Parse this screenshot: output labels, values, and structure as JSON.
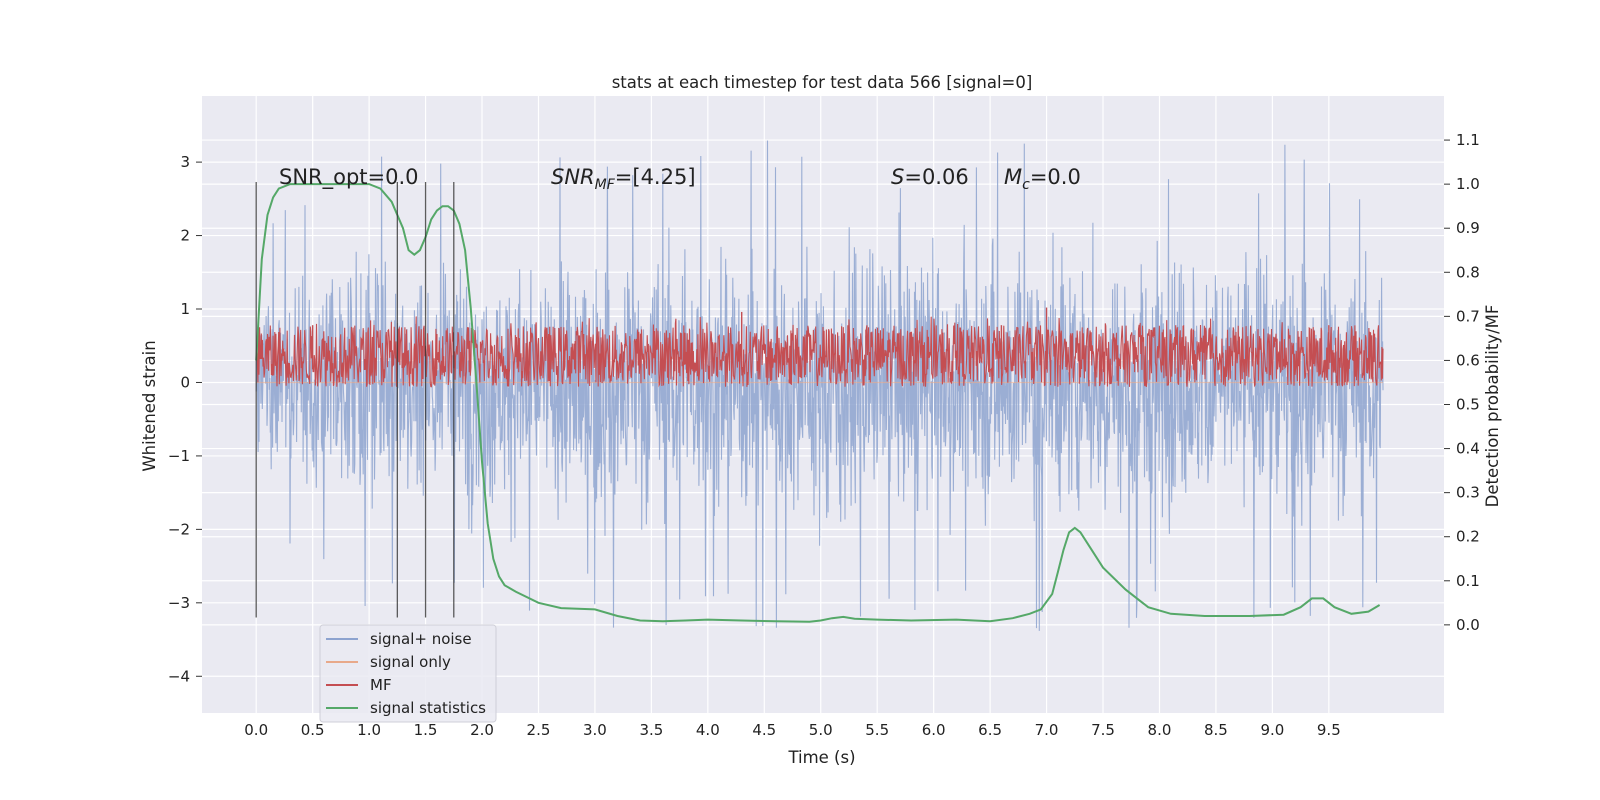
{
  "chart_data": {
    "type": "line",
    "title": "stats at each timestep for test data 566 [signal=0]",
    "xlabel": "Time (s)",
    "ylabel": "Whitened strain",
    "y2label": "Detection probability/MF",
    "xlim": [
      -0.48,
      10.52
    ],
    "ylim": [
      -4.5,
      3.9
    ],
    "y2lim": [
      -0.2,
      1.2
    ],
    "xticks": [
      "0.0",
      "0.5",
      "1.0",
      "1.5",
      "2.0",
      "2.5",
      "3.0",
      "3.5",
      "4.0",
      "4.5",
      "5.0",
      "5.5",
      "6.0",
      "6.5",
      "7.0",
      "7.5",
      "8.0",
      "8.5",
      "9.0",
      "9.5"
    ],
    "xtick_values": [
      0,
      0.5,
      1,
      1.5,
      2,
      2.5,
      3,
      3.5,
      4,
      4.5,
      5,
      5.5,
      6,
      6.5,
      7,
      7.5,
      8,
      8.5,
      9,
      9.5
    ],
    "yticks": [
      "3",
      "2",
      "1",
      "0",
      "−1",
      "−2",
      "−3",
      "−4"
    ],
    "ytick_values": [
      3,
      2,
      1,
      0,
      -1,
      -2,
      -3,
      -4
    ],
    "y2ticks": [
      "1.1",
      "1.0",
      "0.9",
      "0.8",
      "0.7",
      "0.6",
      "0.5",
      "0.4",
      "0.3",
      "0.2",
      "0.1",
      "0.0"
    ],
    "y2tick_values": [
      1.1,
      1.0,
      0.9,
      0.8,
      0.7,
      0.6,
      0.5,
      0.4,
      0.3,
      0.2,
      0.1,
      0.0
    ],
    "grid": true,
    "legend_position": "lower-left",
    "vlines": [
      0.0,
      1.25,
      1.5,
      1.75
    ],
    "vline_range": [
      -3.2,
      2.73
    ],
    "annotations": {
      "snr_opt": "SNR_opt=0.0",
      "snr_mf_main": "SNR",
      "snr_mf_sub": "MF",
      "snr_mf_value": "=[4.25]",
      "s_main": "S",
      "s_value": "=0.06",
      "mc_main": "M",
      "mc_sub": "c",
      "mc_value": "=0.0"
    },
    "series": [
      {
        "name": "signal+ noise",
        "axis": "left",
        "color": "#8da3cf",
        "description_range": [
          -4.0,
          3.55
        ],
        "band_envelope": {
          "t": [
            0,
            1,
            2,
            3,
            4,
            5,
            6,
            7,
            8,
            9,
            10
          ],
          "upper": [
            1.7,
            2.8,
            2.6,
            2.6,
            2.9,
            2.7,
            2.8,
            2.9,
            2.7,
            2.9,
            2.3
          ],
          "lower": [
            -1.7,
            -2.6,
            -2.6,
            -2.9,
            -2.8,
            -2.9,
            -2.7,
            -2.9,
            -2.8,
            -2.8,
            -2.6
          ]
        }
      },
      {
        "name": "signal only",
        "axis": "left",
        "color": "#e8a98a",
        "values_constant": 0.0
      },
      {
        "name": "MF",
        "axis": "right",
        "color": "#c44e52",
        "band_envelope": {
          "t": [
            0,
            10
          ],
          "upper": [
            0.68,
            0.68
          ],
          "lower": [
            0.54,
            0.54
          ]
        },
        "peak_points": [
          [
            0.5,
            0.68
          ],
          [
            1.6,
            0.66
          ],
          [
            2.9,
            0.66
          ],
          [
            4.3,
            0.71
          ],
          [
            5.4,
            0.67
          ],
          [
            6.6,
            0.68
          ],
          [
            7.0,
            0.72
          ],
          [
            8.3,
            0.67
          ],
          [
            9.5,
            0.68
          ]
        ]
      },
      {
        "name": "signal statistics",
        "axis": "right",
        "color": "#55a868",
        "x": [
          0.0,
          0.05,
          0.1,
          0.15,
          0.2,
          0.3,
          0.5,
          0.7,
          0.9,
          1.0,
          1.1,
          1.2,
          1.3,
          1.35,
          1.4,
          1.45,
          1.5,
          1.55,
          1.6,
          1.65,
          1.7,
          1.75,
          1.8,
          1.85,
          1.9,
          1.95,
          2.0,
          2.05,
          2.1,
          2.15,
          2.2,
          2.3,
          2.5,
          2.7,
          3.0,
          3.2,
          3.4,
          3.6,
          3.8,
          4.0,
          4.3,
          4.6,
          4.9,
          5.0,
          5.1,
          5.2,
          5.3,
          5.5,
          5.8,
          6.2,
          6.5,
          6.7,
          6.85,
          6.95,
          7.05,
          7.1,
          7.15,
          7.2,
          7.25,
          7.3,
          7.4,
          7.5,
          7.7,
          7.9,
          8.1,
          8.4,
          8.8,
          9.1,
          9.25,
          9.35,
          9.45,
          9.55,
          9.7,
          9.85,
          9.95
        ],
        "values": [
          0.6,
          0.83,
          0.93,
          0.97,
          0.99,
          1.0,
          1.0,
          1.0,
          1.0,
          1.0,
          0.99,
          0.96,
          0.9,
          0.85,
          0.84,
          0.85,
          0.88,
          0.92,
          0.94,
          0.95,
          0.95,
          0.94,
          0.91,
          0.85,
          0.72,
          0.55,
          0.37,
          0.23,
          0.15,
          0.11,
          0.09,
          0.075,
          0.05,
          0.038,
          0.035,
          0.02,
          0.01,
          0.008,
          0.01,
          0.012,
          0.01,
          0.008,
          0.007,
          0.01,
          0.015,
          0.018,
          0.014,
          0.012,
          0.01,
          0.012,
          0.008,
          0.015,
          0.025,
          0.035,
          0.07,
          0.12,
          0.17,
          0.21,
          0.22,
          0.21,
          0.17,
          0.13,
          0.08,
          0.04,
          0.025,
          0.02,
          0.02,
          0.023,
          0.04,
          0.06,
          0.06,
          0.04,
          0.025,
          0.03,
          0.045
        ]
      }
    ]
  }
}
